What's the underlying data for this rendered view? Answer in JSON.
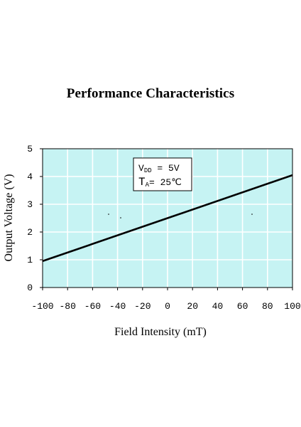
{
  "chart_data": {
    "type": "line",
    "title": "Performance Characteristics",
    "xlabel": "Field Intensity (mT)",
    "ylabel": "Output Voltage (V)",
    "xlim": [
      -100,
      100
    ],
    "ylim": [
      0,
      5
    ],
    "x_ticks": [
      -100,
      -80,
      -60,
      -40,
      -20,
      0,
      20,
      40,
      60,
      80,
      100
    ],
    "y_ticks": [
      0,
      1,
      2,
      3,
      4,
      5
    ],
    "grid": true,
    "series": [
      {
        "x": [
          -100,
          0,
          100
        ],
        "y": [
          0.95,
          2.5,
          4.05
        ]
      }
    ],
    "annotation": {
      "line1_main": "V",
      "line1_sub": "DD",
      "line1_rest": " = 5V",
      "line2_main": "T",
      "line2_sub": "A",
      "line2_rest": "= 25℃"
    },
    "colors": {
      "plot_background": "#c6f3f3",
      "grid": "#ffffff",
      "line": "#000000"
    }
  }
}
